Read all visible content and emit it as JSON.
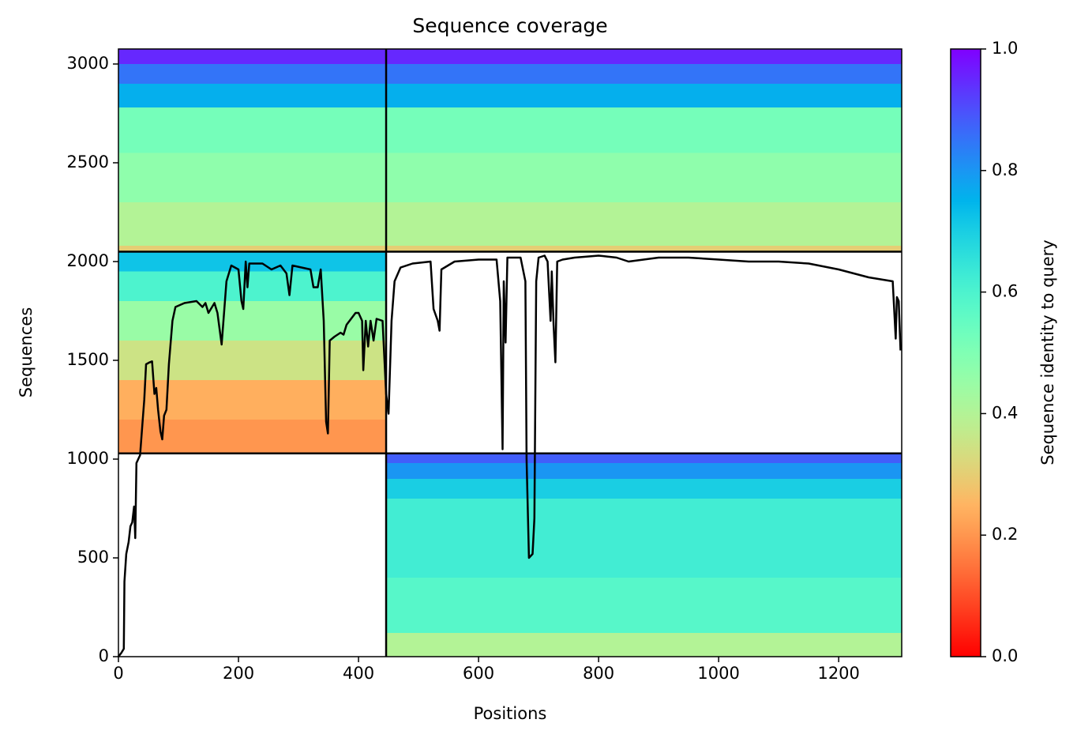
{
  "chart_data": {
    "type": "heatmap",
    "title": "Sequence coverage",
    "xlabel": "Positions",
    "ylabel": "Sequences",
    "colormap": "rainbow_r",
    "xlim": [
      0,
      1305
    ],
    "ylim": [
      0,
      3076
    ],
    "xticks": [
      0,
      200,
      400,
      600,
      800,
      1000,
      1200
    ],
    "yticks": [
      0,
      500,
      1000,
      1500,
      2000,
      2500,
      3000
    ],
    "dividers": {
      "x": [
        446
      ],
      "y": [
        1029,
        2050
      ]
    },
    "blocks": [
      {
        "x": [
          446,
          1305
        ],
        "bands": [
          {
            "y": [
              0,
              120
            ],
            "identity": 0.4
          },
          {
            "y": [
              120,
              400
            ],
            "identity": 0.58
          },
          {
            "y": [
              400,
              800
            ],
            "identity": 0.62
          },
          {
            "y": [
              800,
              900
            ],
            "identity": 0.7
          },
          {
            "y": [
              900,
              980
            ],
            "identity": 0.8
          },
          {
            "y": [
              980,
              1029
            ],
            "identity": 0.88
          }
        ]
      },
      {
        "x": [
          0,
          446
        ],
        "bands": [
          {
            "y": [
              1029,
              1200
            ],
            "identity": 0.2
          },
          {
            "y": [
              1200,
              1400
            ],
            "identity": 0.24
          },
          {
            "y": [
              1400,
              1600
            ],
            "identity": 0.35
          },
          {
            "y": [
              1600,
              1800
            ],
            "identity": 0.45
          },
          {
            "y": [
              1800,
              1950
            ],
            "identity": 0.6
          },
          {
            "y": [
              1950,
              2050
            ],
            "identity": 0.72
          }
        ]
      },
      {
        "x": [
          0,
          1305
        ],
        "bands": [
          {
            "y": [
              2050,
              2080
            ],
            "identity": 0.3
          },
          {
            "y": [
              2080,
              2300
            ],
            "identity": 0.4
          },
          {
            "y": [
              2300,
              2550
            ],
            "identity": 0.47
          },
          {
            "y": [
              2550,
              2780
            ],
            "identity": 0.52
          },
          {
            "y": [
              2780,
              2900
            ],
            "identity": 0.76
          },
          {
            "y": [
              2900,
              3000
            ],
            "identity": 0.85
          },
          {
            "y": [
              3000,
              3076
            ],
            "identity": 0.95
          }
        ]
      }
    ],
    "coverage": {
      "x": [
        0,
        5,
        9,
        10,
        13,
        17,
        20,
        23,
        26,
        28,
        30,
        33,
        36,
        40,
        43,
        46,
        52,
        56,
        60,
        63,
        66,
        70,
        73,
        76,
        80,
        84,
        90,
        95,
        110,
        130,
        140,
        145,
        150,
        160,
        165,
        172,
        180,
        188,
        200,
        205,
        208,
        212,
        215,
        218,
        240,
        255,
        270,
        280,
        285,
        290,
        305,
        320,
        325,
        332,
        337,
        342,
        346,
        349,
        352,
        360,
        370,
        375,
        380,
        390,
        395,
        400,
        406,
        408,
        412,
        416,
        420,
        425,
        430,
        440,
        446,
        450,
        455,
        460,
        470,
        490,
        520,
        525,
        532,
        535,
        538,
        560,
        600,
        630,
        636,
        640,
        642,
        645,
        648,
        670,
        678,
        680,
        684,
        690,
        693,
        696,
        700,
        710,
        715,
        720,
        722,
        725,
        728,
        731,
        740,
        760,
        800,
        830,
        850,
        900,
        950,
        1000,
        1050,
        1100,
        1150,
        1200,
        1250,
        1290,
        1295,
        1297,
        1300,
        1303
      ],
      "values": [
        0,
        20,
        40,
        380,
        520,
        580,
        660,
        680,
        760,
        600,
        980,
        1000,
        1020,
        1180,
        1300,
        1480,
        1490,
        1495,
        1330,
        1360,
        1250,
        1140,
        1100,
        1220,
        1250,
        1480,
        1700,
        1770,
        1790,
        1800,
        1770,
        1790,
        1740,
        1790,
        1740,
        1580,
        1900,
        1980,
        1960,
        1800,
        1760,
        2000,
        1870,
        1990,
        1990,
        1960,
        1980,
        1940,
        1830,
        1980,
        1970,
        1960,
        1870,
        1870,
        1960,
        1700,
        1190,
        1130,
        1600,
        1620,
        1640,
        1630,
        1680,
        1720,
        1740,
        1740,
        1700,
        1450,
        1700,
        1570,
        1700,
        1600,
        1710,
        1700,
        1330,
        1230,
        1700,
        1900,
        1970,
        1990,
        2000,
        1760,
        1700,
        1650,
        1960,
        2000,
        2010,
        2010,
        1800,
        1050,
        1900,
        1590,
        2020,
        2020,
        1900,
        1000,
        500,
        520,
        700,
        1900,
        2020,
        2030,
        2000,
        1700,
        1950,
        1680,
        1490,
        2000,
        2010,
        2020,
        2030,
        2020,
        2000,
        2020,
        2020,
        2010,
        2000,
        2000,
        1990,
        1960,
        1920,
        1900,
        1610,
        1820,
        1800,
        1550
      ],
      "color": "#000000"
    },
    "colorbar": {
      "label": "Sequence identity to query",
      "lim": [
        0,
        1
      ],
      "ticks": [
        {
          "value": 0,
          "label": "0.0"
        },
        0.2,
        0.4,
        0.6,
        0.8,
        {
          "value": 1,
          "label": "1.0"
        }
      ]
    }
  }
}
